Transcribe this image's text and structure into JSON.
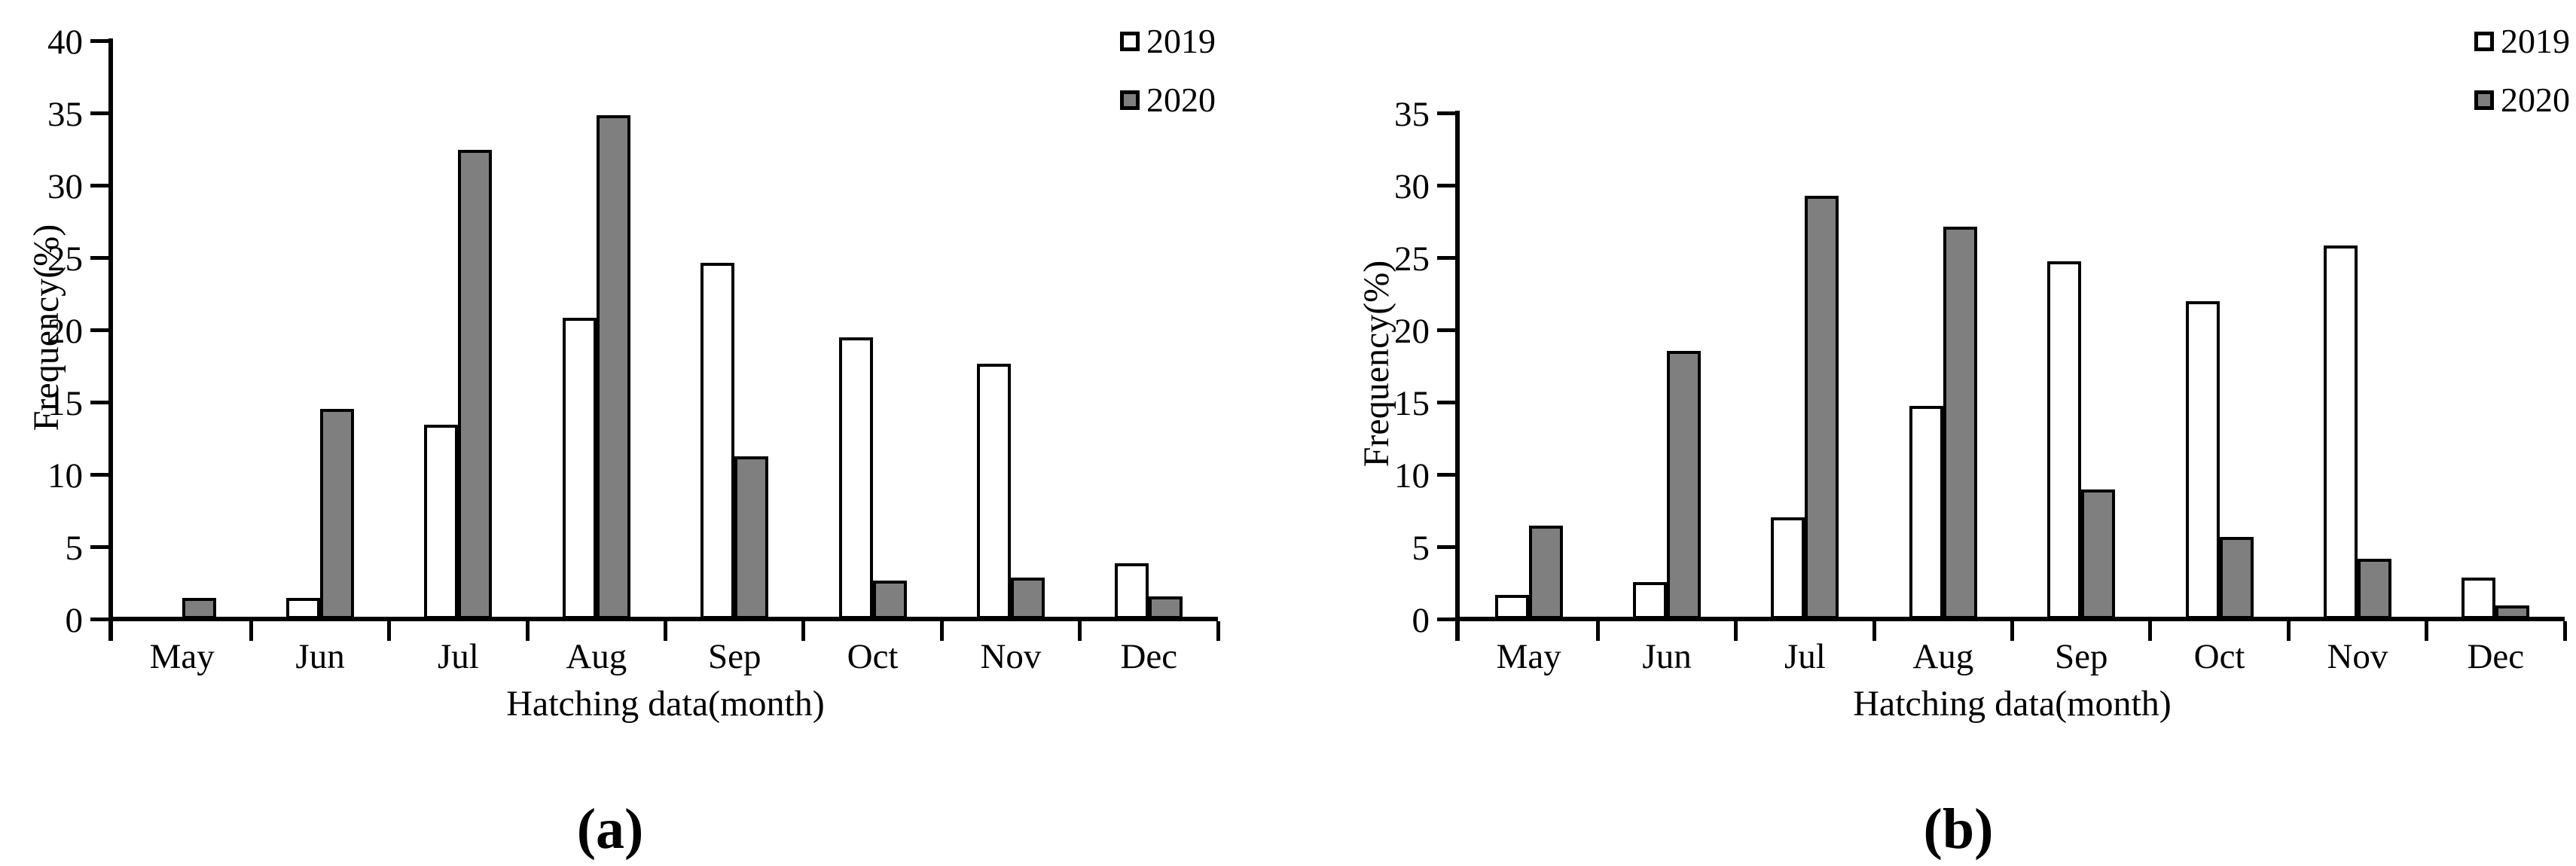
{
  "figure": {
    "background": "#ffffff",
    "axis_color": "#000000",
    "bar_border_color": "#000000",
    "series_2019_fill": "#ffffff",
    "series_2020_fill": "#7f7f7f"
  },
  "chart_data": [
    {
      "type": "bar",
      "caption": "(a)",
      "title": "",
      "xlabel": "Hatching data(month)",
      "ylabel": "Frequency(%)",
      "ylim": [
        0,
        40
      ],
      "ytick_step": 5,
      "ytick_labels": [
        "0",
        "5",
        "10",
        "15",
        "20",
        "25",
        "30",
        "35",
        "40"
      ],
      "grid": false,
      "legend_position": "top-right",
      "categories": [
        "May",
        "Jun",
        "Jul",
        "Aug",
        "Sep",
        "Oct",
        "Nov",
        "Dec"
      ],
      "series": [
        {
          "name": "2019",
          "fill": "#ffffff",
          "values": [
            0,
            1.3,
            13.3,
            20.7,
            24.5,
            19.3,
            17.5,
            3.7
          ]
        },
        {
          "name": "2020",
          "fill": "#7f7f7f",
          "values": [
            1.3,
            14.4,
            32.3,
            34.7,
            11.1,
            2.5,
            2.7,
            1.4
          ]
        }
      ]
    },
    {
      "type": "bar",
      "caption": "(b)",
      "title": "",
      "xlabel": "Hatching data(month)",
      "ylabel": "Frequency(%)",
      "ylim": [
        0,
        35
      ],
      "ytick_step": 5,
      "ytick_labels": [
        "0",
        "5",
        "10",
        "15",
        "20",
        "25",
        "30",
        "35"
      ],
      "grid": false,
      "legend_position": "top-right",
      "categories": [
        "May",
        "Jun",
        "Jul",
        "Aug",
        "Sep",
        "Oct",
        "Nov",
        "Dec"
      ],
      "series": [
        {
          "name": "2019",
          "fill": "#ffffff",
          "values": [
            1.5,
            2.4,
            6.9,
            14.6,
            24.6,
            21.8,
            25.7,
            2.7
          ]
        },
        {
          "name": "2020",
          "fill": "#7f7f7f",
          "values": [
            6.3,
            18.4,
            29.1,
            27.0,
            8.8,
            5.5,
            4.0,
            0.8
          ]
        }
      ]
    }
  ]
}
